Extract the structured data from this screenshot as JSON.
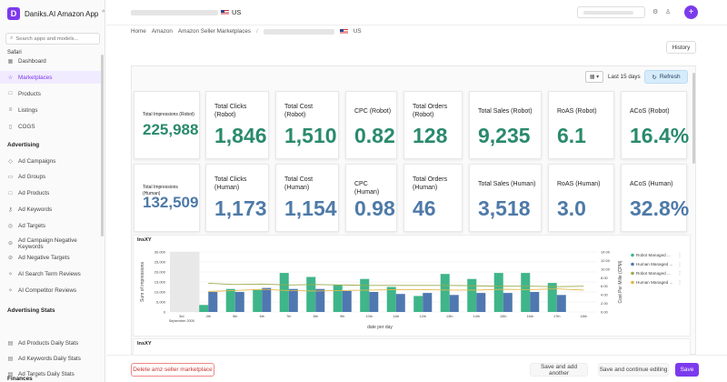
{
  "app": {
    "name": "Daniks.AI Amazon App",
    "logo_letter": "D"
  },
  "sidebar": {
    "search_placeholder": "Search apps and models...",
    "browser_label": "Safari",
    "items_top": [
      {
        "label": "Dashboard",
        "icon": "dashboard-icon",
        "glyph": "▦"
      },
      {
        "label": "Marketplaces",
        "icon": "star-icon",
        "glyph": "☆",
        "active": true
      },
      {
        "label": "Products",
        "icon": "box-icon",
        "glyph": "□"
      },
      {
        "label": "Listings",
        "icon": "list-icon",
        "glyph": "≡"
      },
      {
        "label": "COGS",
        "icon": "document-icon",
        "glyph": "▯"
      }
    ],
    "section_advertising": "Advertising",
    "items_advertising": [
      {
        "label": "Ad Campaigns",
        "icon": "megaphone-icon",
        "glyph": "◇"
      },
      {
        "label": "Ad Groups",
        "icon": "folder-icon",
        "glyph": "▭"
      },
      {
        "label": "Ad Products",
        "icon": "box-icon",
        "glyph": "□"
      },
      {
        "label": "Ad Keywords",
        "icon": "key-icon",
        "glyph": "⚷"
      },
      {
        "label": "Ad Targets",
        "icon": "target-icon",
        "glyph": "◎"
      },
      {
        "label": "Ad Campaign Negative Keywords",
        "icon": "minus-icon",
        "glyph": "⊖"
      },
      {
        "label": "Ad Negative Targets",
        "icon": "target-off-icon",
        "glyph": "⊘"
      },
      {
        "label": "AI Search Term Reviews",
        "icon": "sparkle-icon",
        "glyph": "✧"
      },
      {
        "label": "AI Competitor Reviews",
        "icon": "sparkle-icon",
        "glyph": "✧"
      }
    ],
    "section_stats": "Advertising Stats",
    "items_stats": [
      {
        "label": "Ad Products Daily Stats",
        "icon": "chart-icon",
        "glyph": "▤"
      },
      {
        "label": "Ad Keywords Daily Stats",
        "icon": "chart-icon",
        "glyph": "▤"
      },
      {
        "label": "Ad Targets Daily Stats",
        "icon": "chart-icon",
        "glyph": "▤"
      }
    ],
    "section_finances": "Finances"
  },
  "header": {
    "title_suffix": "US"
  },
  "breadcrumb": {
    "items": [
      "Home",
      "Amazon",
      "Amazon Seller Marketplaces"
    ],
    "current_suffix": "US"
  },
  "buttons": {
    "history": "History",
    "date_range": "Last 15 days",
    "refresh": "Refresh",
    "delete": "Delete amz seller marketplace",
    "save_add": "Save and add another",
    "save_continue": "Save and continue editing",
    "save": "Save"
  },
  "metrics_robot": [
    {
      "label": "Total Impressions (Robot)",
      "value": "225,988",
      "small": true
    },
    {
      "label": "Total Clicks (Robot)",
      "value": "1,846"
    },
    {
      "label": "Total Cost (Robot)",
      "value": "1,510"
    },
    {
      "label": "CPC (Robot)",
      "value": "0.82"
    },
    {
      "label": "Total Orders (Robot)",
      "value": "128"
    },
    {
      "label": "Total Sales (Robot)",
      "value": "9,235"
    },
    {
      "label": "RoAS (Robot)",
      "value": "6.1"
    },
    {
      "label": "ACoS (Robot)",
      "value": "16.4%"
    }
  ],
  "metrics_human": [
    {
      "label": "Total Impressions (Human)",
      "value": "132,509",
      "small": true
    },
    {
      "label": "Total Clicks (Human)",
      "value": "1,173"
    },
    {
      "label": "Total Cost (Human)",
      "value": "1,154"
    },
    {
      "label": "CPC (Human)",
      "value": "0.98"
    },
    {
      "label": "Total Orders (Human)",
      "value": "46"
    },
    {
      "label": "Total Sales (Human)",
      "value": "3,518"
    },
    {
      "label": "RoAS (Human)",
      "value": "3.0"
    },
    {
      "label": "ACoS (Human)",
      "value": "32.8%"
    }
  ],
  "colors": {
    "accent": "#7c3aed",
    "robot": "#3fb58a",
    "human": "#4f78b0",
    "robot_line": "#9aab4e",
    "human_line": "#e0b84a"
  },
  "chart_data": {
    "type": "bar",
    "title": "InsXY",
    "xlabel": "date per day",
    "ylabel": "Sum of impressions",
    "y2label": "Cost Per Mille (CPM)",
    "ylim": [
      0,
      30000
    ],
    "y_ticks": [
      "0",
      "5,000",
      "10,000",
      "15,000",
      "20,000",
      "25,000",
      "30,000"
    ],
    "y2lim": [
      0,
      14
    ],
    "y2_ticks": [
      "0.00",
      "2.00",
      "4.00",
      "6.00",
      "8.00",
      "10.00",
      "12.00",
      "14.00"
    ],
    "x_ticks": [
      "3rd",
      "4th",
      "5th",
      "6th",
      "7th",
      "8th",
      "9th",
      "10th",
      "11th",
      "12th",
      "13th",
      "14th",
      "15th",
      "16th",
      "17th",
      "18th"
    ],
    "x_sub": "September 2005",
    "categories": [
      "3rd",
      "4th",
      "5th",
      "6th",
      "7th",
      "8th",
      "9th",
      "10th",
      "11th",
      "12th",
      "13th",
      "14th",
      "15th",
      "16th",
      "17th",
      "18th"
    ],
    "series": [
      {
        "name": "Robot Managed ...",
        "kind": "bar",
        "axis": "left",
        "values": [
          null,
          3500,
          11500,
          11000,
          19500,
          17500,
          13500,
          16500,
          12500,
          8000,
          19000,
          16500,
          19500,
          19500,
          14500,
          0
        ]
      },
      {
        "name": "Human Managed ...",
        "kind": "bar",
        "axis": "left",
        "values": [
          null,
          10000,
          10000,
          12000,
          11500,
          11500,
          10500,
          10000,
          9000,
          9500,
          8500,
          9500,
          9500,
          10000,
          8500,
          0
        ]
      },
      {
        "name": "Robot Managed ...",
        "kind": "line",
        "axis": "right",
        "values": [
          null,
          6.7,
          6.4,
          6.5,
          6.3,
          6.4,
          6.3,
          6.2,
          6.2,
          6.2,
          6.2,
          6.1,
          6.0,
          6.0,
          5.9,
          6.0
        ]
      },
      {
        "name": "Human Managed ...",
        "kind": "line",
        "axis": "right",
        "values": [
          null,
          4.8,
          5.0,
          5.3,
          5.0,
          4.9,
          5.0,
          5.1,
          5.2,
          5.2,
          5.1,
          5.1,
          5.3,
          5.2,
          5.4,
          5.1
        ]
      }
    ],
    "legend_position": "right"
  },
  "chart2": {
    "title": "InsXY"
  }
}
